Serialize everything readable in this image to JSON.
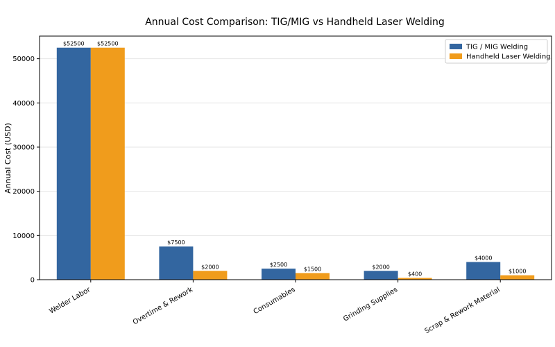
{
  "chart_data": {
    "type": "bar",
    "title": "Annual Cost Comparison: TIG/MIG vs Handheld Laser Welding",
    "xlabel": "",
    "ylabel": "Annual Cost (USD)",
    "categories": [
      "Welder Labor",
      "Overtime & Rework",
      "Consumables",
      "Grinding Supplies",
      "Scrap & Rework Material"
    ],
    "series": [
      {
        "name": "TIG / MIG Welding",
        "color": "#3366a0",
        "values": [
          52500,
          7500,
          2500,
          2000,
          4000
        ]
      },
      {
        "name": "Handheld Laser Welding",
        "color": "#f09c1c",
        "values": [
          52500,
          2000,
          1500,
          400,
          1000
        ]
      }
    ],
    "value_label_prefix": "$",
    "ylim": [
      0,
      55125
    ],
    "yticks": [
      0,
      10000,
      20000,
      30000,
      40000,
      50000
    ],
    "grid": "y",
    "legend_position": "top-right"
  }
}
